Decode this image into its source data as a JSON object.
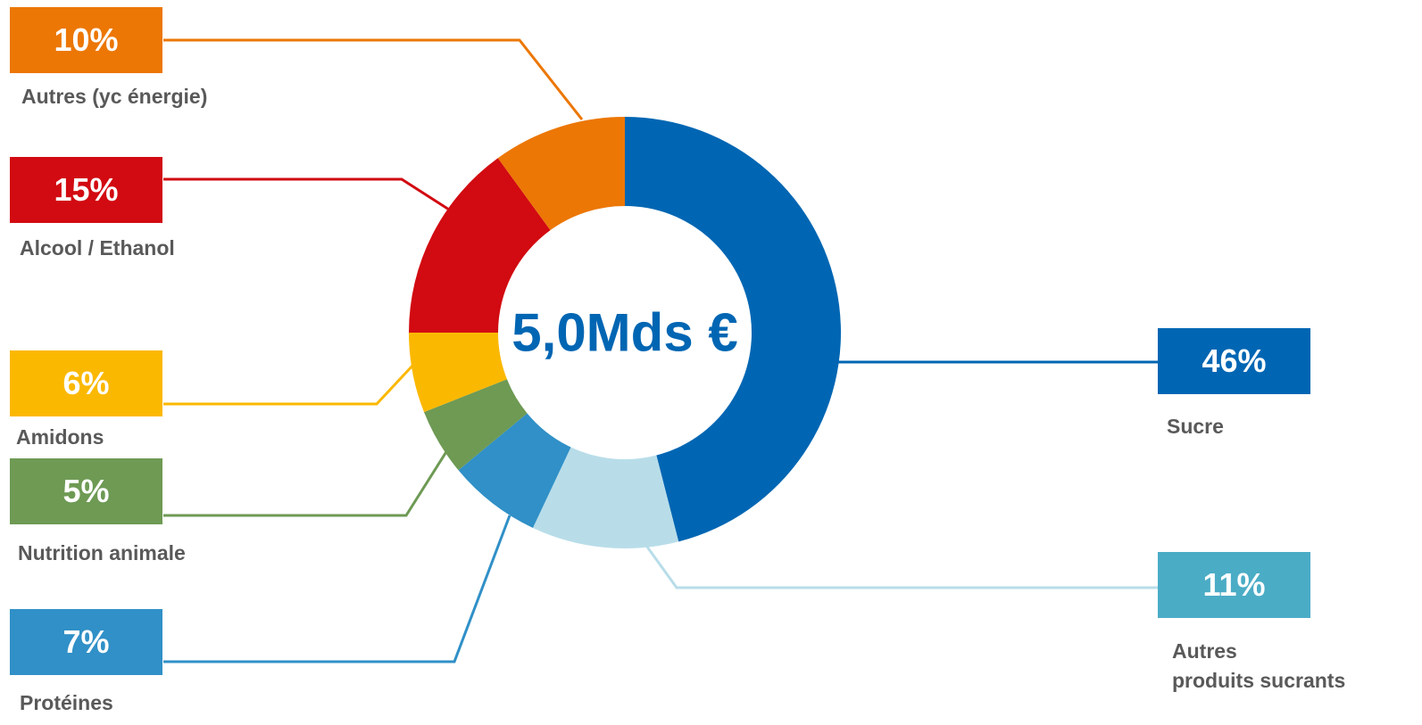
{
  "center_label": "5,0Mds €",
  "chart_data": {
    "type": "pie",
    "donut": true,
    "slices": [
      {
        "category": "Sucre",
        "value": 46,
        "value_label": "46%",
        "color": "#0066b3"
      },
      {
        "category": "Autres\nproduits sucrants",
        "value": 11,
        "value_label": "11%",
        "color": "#b8dde9",
        "label_box_color": "#4bacc6"
      },
      {
        "category": "Protéines",
        "value": 7,
        "value_label": "7%",
        "color": "#3090c7"
      },
      {
        "category": "Nutrition animale",
        "value": 5,
        "value_label": "5%",
        "color": "#6e9a54"
      },
      {
        "category": "Amidons",
        "value": 6,
        "value_label": "6%",
        "color": "#fbb800"
      },
      {
        "category": "Alcool / Ethanol",
        "value": 15,
        "value_label": "15%",
        "color": "#d20a11"
      },
      {
        "category": "Autres (yc énergie)",
        "value": 10,
        "value_label": "10%",
        "color": "#ec7704"
      }
    ]
  }
}
